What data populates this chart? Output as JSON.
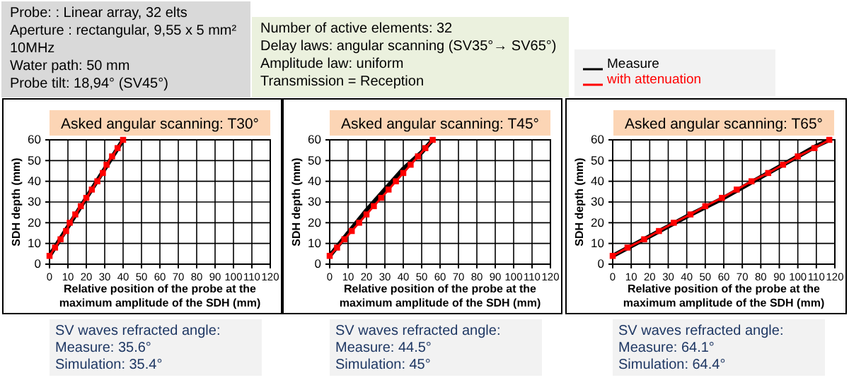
{
  "chart_data": [
    {
      "type": "other",
      "annotations": [
        "Probe: : Linear array, 32 elts",
        "Aperture : rectangular, 9,55 x 5 mm²",
        "10MHz",
        "Water path: 50 mm",
        "Probe tilt: 18,94° (SV45°)"
      ]
    },
    {
      "type": "other",
      "annotations": [
        "Number of active elements: 32",
        "Delay laws: angular scanning (SV35°→ SV65°)",
        "Amplitude law: uniform",
        "Transmission = Reception"
      ]
    },
    {
      "type": "line",
      "title": "Asked angular scanning: T30°",
      "xlabel": "Relative position of the probe at the maximum amplitude of the SDH (mm)",
      "ylabel": "SDH depth (mm)",
      "xlim": [
        0,
        120
      ],
      "xticks": [
        0,
        10,
        20,
        30,
        40,
        50,
        60,
        70,
        80,
        90,
        100,
        110,
        120
      ],
      "ylim": [
        0,
        60
      ],
      "yticks": [
        0,
        10,
        20,
        30,
        40,
        50,
        60
      ],
      "grid": true,
      "legend": "top right",
      "series": [
        {
          "name": "Measure",
          "color": "#000000",
          "marker": "none",
          "x": [
            0,
            10,
            20,
            30,
            40
          ],
          "values": [
            4,
            18,
            32,
            46,
            60
          ]
        },
        {
          "name": "with attenuation",
          "color": "#ff0000",
          "marker": "square",
          "x": [
            0,
            3,
            6,
            9,
            11,
            14,
            17,
            20,
            23,
            26,
            29,
            31,
            34,
            37,
            40
          ],
          "values": [
            4,
            8,
            12,
            16,
            20,
            24,
            28,
            32,
            36,
            40,
            44,
            48,
            52,
            56,
            60
          ]
        }
      ],
      "annotations": [
        "SV waves refracted angle:",
        "Measure: 35.6°",
        "Simulation: 35.4°"
      ]
    },
    {
      "type": "line",
      "title": "Asked angular scanning: T45°",
      "xlabel": "Relative position of the probe at the maximum amplitude of the SDH (mm)",
      "ylabel": "SDH depth (mm)",
      "xlim": [
        0,
        120
      ],
      "xticks": [
        0,
        10,
        20,
        30,
        40,
        50,
        60,
        70,
        80,
        90,
        100,
        110,
        120
      ],
      "ylim": [
        0,
        60
      ],
      "yticks": [
        0,
        10,
        20,
        30,
        40,
        50,
        60
      ],
      "grid": true,
      "series": [
        {
          "color": "#000000",
          "marker": "none",
          "x": [
            0,
            10,
            20,
            30,
            40,
            50,
            56
          ],
          "values": [
            4,
            15,
            26,
            36,
            46,
            54,
            60
          ]
        },
        {
          "color": "#ff0000",
          "marker": "square",
          "x": [
            0,
            4,
            8,
            12,
            16,
            20,
            24,
            28,
            32,
            36,
            40,
            44,
            48,
            52,
            56
          ],
          "values": [
            4,
            8,
            12,
            16,
            20,
            24,
            28,
            32,
            36,
            40,
            44,
            48,
            52,
            56,
            60
          ]
        }
      ],
      "annotations": [
        "SV waves refracted angle:",
        "Measure: 44.5°",
        "Simulation: 45°"
      ]
    },
    {
      "type": "line",
      "title": "Asked angular scanning: T65°",
      "xlabel": "Relative position of the probe at the maximum amplitude of the SDH (mm)",
      "ylabel": "SDH depth (mm)",
      "xlim": [
        0,
        120
      ],
      "xticks": [
        0,
        10,
        20,
        30,
        40,
        50,
        60,
        70,
        80,
        90,
        100,
        110,
        120
      ],
      "ylim": [
        0,
        60
      ],
      "yticks": [
        0,
        10,
        20,
        30,
        40,
        50,
        60
      ],
      "grid": true,
      "series": [
        {
          "color": "#000000",
          "marker": "none",
          "x": [
            0,
            20,
            40,
            60,
            80,
            100,
            110,
            117
          ],
          "values": [
            4,
            13.5,
            23,
            32,
            42,
            52,
            57,
            60
          ]
        },
        {
          "color": "#ff0000",
          "marker": "square",
          "x": [
            0,
            8,
            17,
            25,
            33,
            42,
            50,
            59,
            67,
            75,
            84,
            92,
            100,
            109,
            117
          ],
          "values": [
            4,
            8,
            12,
            16,
            20,
            24,
            28,
            32,
            36,
            40,
            44,
            48,
            52,
            56,
            60
          ]
        }
      ],
      "annotations": [
        "SV waves refracted angle:",
        "Measure: 64.1°",
        "Simulation: 64.4°"
      ]
    }
  ]
}
